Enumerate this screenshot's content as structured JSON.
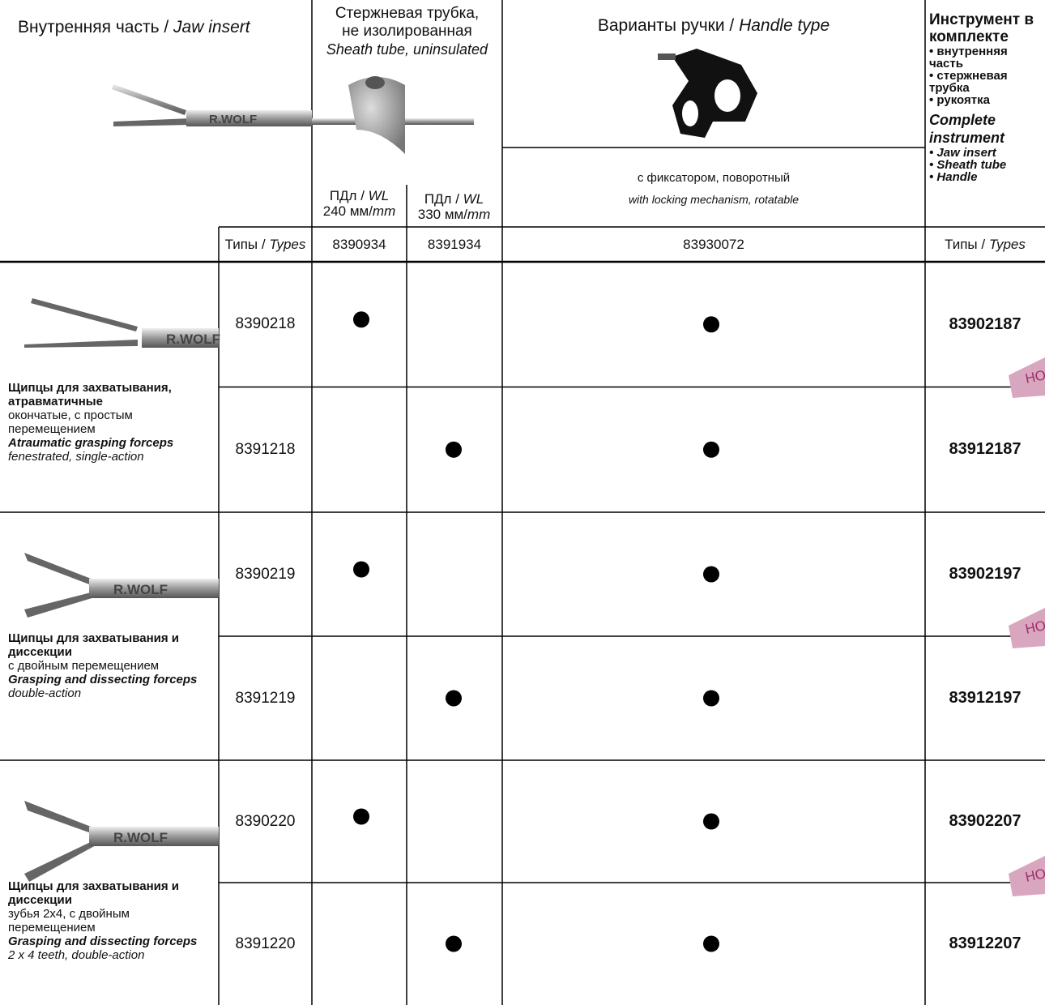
{
  "header": {
    "jaw": {
      "ru": "Внутренняя часть /",
      "en": "Jaw insert"
    },
    "sheath": {
      "ru": "Стержневая трубка, не изолированная",
      "en": "Sheath tube, uninsulated",
      "wl": [
        {
          "ru": "ПДл /",
          "en": "WL",
          "len": "240 мм/",
          "unit": "mm"
        },
        {
          "ru": "ПДл /",
          "en": "WL",
          "len": "330 мм/",
          "unit": "mm"
        }
      ]
    },
    "handle": {
      "title_ru": "Варианты ручки /",
      "title_en": "Handle type",
      "desc_ru": "с фиксатором, поворотный",
      "desc_en": "with locking mechanism, rotatable"
    },
    "complete": {
      "title_ru": "Инструмент в комплекте",
      "items_ru": [
        "• внутренняя часть",
        "• стержневая трубка",
        "• рукоятка"
      ],
      "title_en": "Complete instrument",
      "items_en": [
        "• Jaw insert",
        "• Sheath tube",
        "• Handle"
      ]
    }
  },
  "brand": "R.WOLF",
  "types_row": {
    "label_ru": "Типы /",
    "label_en": "Types",
    "sheath_240": "8390934",
    "sheath_330": "8391934",
    "handle": "83930072",
    "complete_ru": "Типы /",
    "complete_en": "Types"
  },
  "groups": [
    {
      "title": "Щипцы для захватывания, атравматичные",
      "desc_ru": "окончатые, с простым перемещением",
      "title_en": "Atraumatic grasping forceps",
      "desc_en": "fenestrated, single-action",
      "badge": "НО",
      "rows": [
        {
          "type": "8390218",
          "sheath_240": true,
          "sheath_330": false,
          "handle": true,
          "complete": "83902187"
        },
        {
          "type": "8391218",
          "sheath_240": false,
          "sheath_330": true,
          "handle": true,
          "complete": "83912187"
        }
      ]
    },
    {
      "title": "Щипцы для захватывания и диссекции",
      "desc_ru": "с двойным перемещением",
      "title_en": "Grasping and dissecting forceps",
      "desc_en": "double-action",
      "badge": "НО",
      "rows": [
        {
          "type": "8390219",
          "sheath_240": true,
          "sheath_330": false,
          "handle": true,
          "complete": "83902197"
        },
        {
          "type": "8391219",
          "sheath_240": false,
          "sheath_330": true,
          "handle": true,
          "complete": "83912197"
        }
      ]
    },
    {
      "title": "Щипцы для захватывания и диссекции",
      "desc_ru": "зубья 2x4, с двойным перемещением",
      "title_en": "Grasping and dissecting forceps",
      "desc_en": "2 x 4 teeth, double-action",
      "badge": "НО",
      "rows": [
        {
          "type": "8390220",
          "sheath_240": true,
          "sheath_330": false,
          "handle": true,
          "complete": "83902207"
        },
        {
          "type": "8391220",
          "sheath_240": false,
          "sheath_330": true,
          "handle": true,
          "complete": "83912207"
        }
      ]
    }
  ]
}
